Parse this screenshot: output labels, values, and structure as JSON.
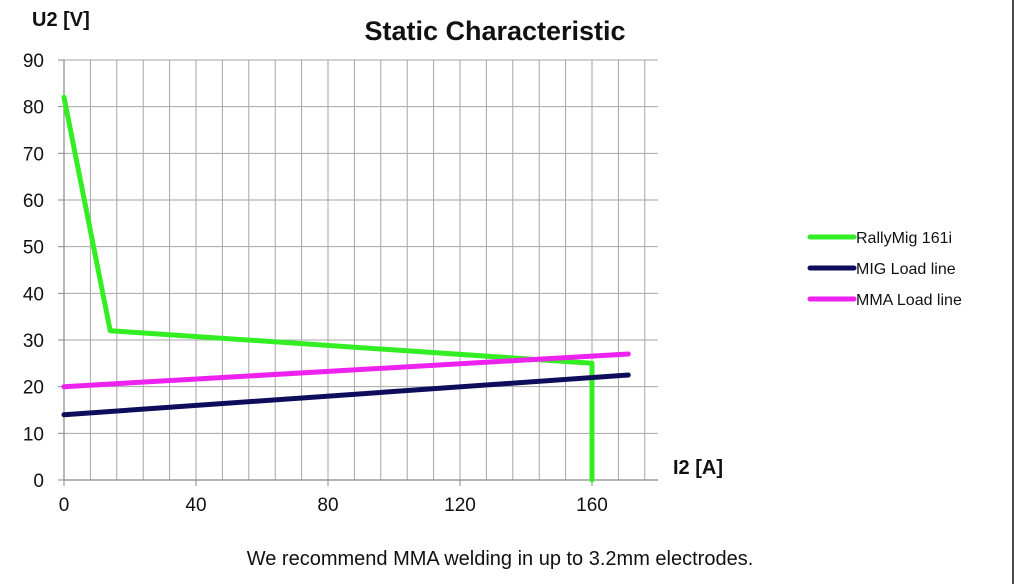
{
  "chart_data": {
    "type": "line",
    "title": "Static Characteristic",
    "ylabel": "U2 [V]",
    "xlabel": "I2 [A]",
    "xlim": [
      0,
      180
    ],
    "ylim": [
      0,
      90
    ],
    "x_ticks": [
      0,
      40,
      80,
      120,
      160
    ],
    "y_ticks": [
      0,
      10,
      20,
      30,
      40,
      50,
      60,
      70,
      80,
      90
    ],
    "minor_x_step": 8,
    "grid": true,
    "legend_position": "right",
    "series": [
      {
        "name": "RallyMig 161i",
        "color": "#33ee22",
        "points": [
          [
            0,
            82
          ],
          [
            14,
            32
          ],
          [
            160,
            25
          ],
          [
            160,
            0
          ]
        ]
      },
      {
        "name": "MIG Load line",
        "color": "#0d0d5c",
        "points": [
          [
            0,
            14
          ],
          [
            171,
            22.5
          ]
        ]
      },
      {
        "name": "MMA Load line",
        "color": "#ee22ee",
        "points": [
          [
            0,
            20
          ],
          [
            171,
            27
          ]
        ]
      }
    ]
  },
  "note": "We recommend MMA welding in up to 3.2mm electrodes."
}
